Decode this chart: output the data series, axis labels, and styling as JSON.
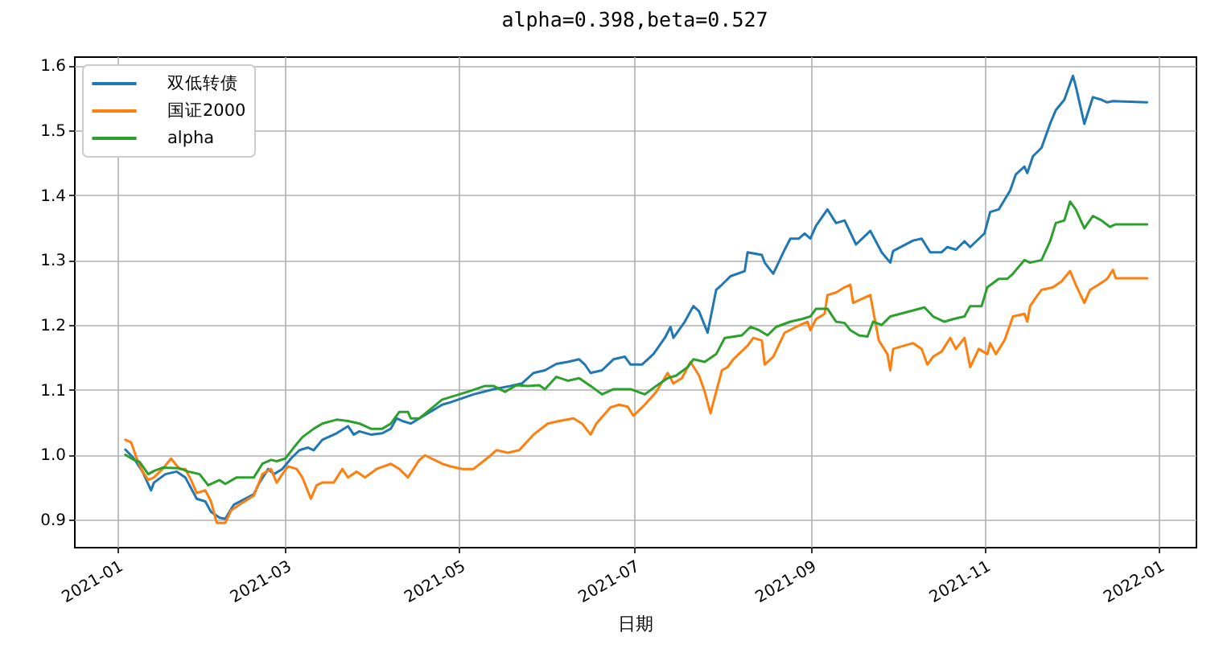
{
  "chart_data": {
    "type": "line",
    "title": "alpha=0.398,beta=0.527",
    "xlabel": "日期",
    "xlim": [
      "2020-12-17",
      "2022-01-14"
    ],
    "ylim": [
      0.858,
      1.614
    ],
    "xticks": [
      "2021-01",
      "2021-03",
      "2021-05",
      "2021-07",
      "2021-09",
      "2021-11",
      "2022-01"
    ],
    "yticks": [
      0.9,
      {
        "value": 1,
        "label": "1.0"
      },
      1.1,
      1.2,
      1.3,
      1.4,
      1.5,
      1.6
    ],
    "grid": true,
    "legend": "top left",
    "series": [
      {
        "name": "双低转债",
        "color": "#1f77b4",
        "x": [
          "2021-01-04",
          "2021-01-07",
          "2021-01-10",
          "2021-01-13",
          "2021-01-14",
          "2021-01-18",
          "2021-01-22",
          "2021-01-25",
          "2021-01-29",
          "2021-02-01",
          "2021-02-03",
          "2021-02-06",
          "2021-02-08",
          "2021-02-10",
          "2021-02-11",
          "2021-02-18",
          "2021-02-20",
          "2021-02-23",
          "2021-02-25",
          "2021-02-28",
          "2021-03-03",
          "2021-03-06",
          "2021-03-09",
          "2021-03-11",
          "2021-03-14",
          "2021-03-19",
          "2021-03-23",
          "2021-03-25",
          "2021-03-27",
          "2021-03-31",
          "2021-04-04",
          "2021-04-07",
          "2021-04-09",
          "2021-04-11",
          "2021-04-14",
          "2021-04-17",
          "2021-04-25",
          "2021-04-28",
          "2021-05-06",
          "2021-05-13",
          "2021-05-19",
          "2021-05-23",
          "2021-05-27",
          "2021-05-31",
          "2021-06-04",
          "2021-06-08",
          "2021-06-12",
          "2021-06-14",
          "2021-06-16",
          "2021-06-20",
          "2021-06-24",
          "2021-06-28",
          "2021-06-30",
          "2021-07-04",
          "2021-07-08",
          "2021-07-12",
          "2021-07-14",
          "2021-07-15",
          "2021-07-19",
          "2021-07-22",
          "2021-07-24",
          "2021-07-27",
          "2021-07-30",
          "2021-08-01",
          "2021-08-04",
          "2021-08-09",
          "2021-08-10",
          "2021-08-15",
          "2021-08-16",
          "2021-08-19",
          "2021-08-23",
          "2021-08-25",
          "2021-08-28",
          "2021-08-30",
          "2021-09-01",
          "2021-09-03",
          "2021-09-07",
          "2021-09-10",
          "2021-09-13",
          "2021-09-17",
          "2021-09-22",
          "2021-09-26",
          "2021-09-29",
          "2021-09-30",
          "2021-10-07",
          "2021-10-10",
          "2021-10-13",
          "2021-10-17",
          "2021-10-19",
          "2021-10-22",
          "2021-10-25",
          "2021-10-27",
          "2021-11-01",
          "2021-11-03",
          "2021-11-06",
          "2021-11-10",
          "2021-11-12",
          "2021-11-15",
          "2021-11-16",
          "2021-11-18",
          "2021-11-21",
          "2021-11-24",
          "2021-11-26",
          "2021-11-29",
          "2021-12-02",
          "2021-12-03",
          "2021-12-06",
          "2021-12-09",
          "2021-12-12",
          "2021-12-14",
          "2021-12-16",
          "2021-12-28"
        ],
        "values": [
          1.008,
          0.994,
          0.974,
          0.945,
          0.957,
          0.97,
          0.974,
          0.965,
          0.932,
          0.928,
          0.912,
          0.903,
          0.901,
          0.916,
          0.923,
          0.939,
          0.957,
          0.978,
          0.97,
          0.978,
          0.994,
          1.007,
          1.011,
          1.007,
          1.023,
          1.033,
          1.044,
          1.031,
          1.036,
          1.031,
          1.033,
          1.04,
          1.056,
          1.052,
          1.048,
          1.056,
          1.077,
          1.081,
          1.093,
          1.101,
          1.106,
          1.11,
          1.126,
          1.13,
          1.14,
          1.143,
          1.147,
          1.139,
          1.126,
          1.13,
          1.147,
          1.151,
          1.139,
          1.139,
          1.155,
          1.18,
          1.197,
          1.18,
          1.205,
          1.229,
          1.221,
          1.188,
          1.254,
          1.262,
          1.275,
          1.283,
          1.312,
          1.308,
          1.296,
          1.279,
          1.316,
          1.333,
          1.333,
          1.341,
          1.333,
          1.353,
          1.378,
          1.357,
          1.361,
          1.324,
          1.345,
          1.312,
          1.296,
          1.314,
          1.33,
          1.333,
          1.312,
          1.312,
          1.32,
          1.316,
          1.329,
          1.32,
          1.341,
          1.374,
          1.378,
          1.407,
          1.432,
          1.444,
          1.434,
          1.46,
          1.473,
          1.51,
          1.531,
          1.547,
          1.584,
          1.568,
          1.51,
          1.551,
          1.547,
          1.543,
          1.545,
          1.543
        ]
      },
      {
        "name": "国证2000",
        "color": "#ff7f0e",
        "x": [
          "2021-01-04",
          "2021-01-06",
          "2021-01-08",
          "2021-01-10",
          "2021-01-12",
          "2021-01-14",
          "2021-01-17",
          "2021-01-20",
          "2021-01-23",
          "2021-01-25",
          "2021-01-27",
          "2021-01-29",
          "2021-02-01",
          "2021-02-03",
          "2021-02-05",
          "2021-02-08",
          "2021-02-10",
          "2021-02-14",
          "2021-02-18",
          "2021-02-21",
          "2021-02-24",
          "2021-02-26",
          "2021-02-28",
          "2021-03-02",
          "2021-03-05",
          "2021-03-07",
          "2021-03-10",
          "2021-03-12",
          "2021-03-14",
          "2021-03-18",
          "2021-03-21",
          "2021-03-23",
          "2021-03-26",
          "2021-03-29",
          "2021-04-02",
          "2021-04-07",
          "2021-04-10",
          "2021-04-13",
          "2021-04-17",
          "2021-04-19",
          "2021-04-25",
          "2021-04-28",
          "2021-05-02",
          "2021-05-06",
          "2021-05-12",
          "2021-05-14",
          "2021-05-18",
          "2021-05-22",
          "2021-05-27",
          "2021-06-01",
          "2021-06-05",
          "2021-06-10",
          "2021-06-13",
          "2021-06-16",
          "2021-06-18",
          "2021-06-23",
          "2021-06-26",
          "2021-06-29",
          "2021-07-01",
          "2021-07-05",
          "2021-07-09",
          "2021-07-13",
          "2021-07-15",
          "2021-07-18",
          "2021-07-21",
          "2021-07-24",
          "2021-07-26",
          "2021-07-28",
          "2021-07-30",
          "2021-08-01",
          "2021-08-03",
          "2021-08-05",
          "2021-08-10",
          "2021-08-12",
          "2021-08-15",
          "2021-08-16",
          "2021-08-19",
          "2021-08-23",
          "2021-08-27",
          "2021-08-31",
          "2021-09-01",
          "2021-09-03",
          "2021-09-06",
          "2021-09-07",
          "2021-09-10",
          "2021-09-13",
          "2021-09-15",
          "2021-09-16",
          "2021-09-22",
          "2021-09-25",
          "2021-09-28",
          "2021-09-29",
          "2021-09-30",
          "2021-10-07",
          "2021-10-10",
          "2021-10-12",
          "2021-10-14",
          "2021-10-17",
          "2021-10-20",
          "2021-10-22",
          "2021-10-25",
          "2021-10-27",
          "2021-10-30",
          "2021-11-02",
          "2021-11-03",
          "2021-11-05",
          "2021-11-08",
          "2021-11-11",
          "2021-11-15",
          "2021-11-16",
          "2021-11-17",
          "2021-11-19",
          "2021-11-21",
          "2021-11-25",
          "2021-11-28",
          "2021-12-01",
          "2021-12-03",
          "2021-12-06",
          "2021-12-08",
          "2021-12-11",
          "2021-12-14",
          "2021-12-16",
          "2021-12-17",
          "2021-12-28"
        ],
        "values": [
          1.023,
          1.019,
          0.994,
          0.974,
          0.961,
          0.965,
          0.978,
          0.994,
          0.978,
          0.978,
          0.961,
          0.941,
          0.945,
          0.928,
          0.895,
          0.895,
          0.914,
          0.926,
          0.937,
          0.97,
          0.978,
          0.957,
          0.97,
          0.982,
          0.978,
          0.965,
          0.932,
          0.953,
          0.957,
          0.957,
          0.978,
          0.965,
          0.974,
          0.965,
          0.978,
          0.986,
          0.978,
          0.965,
          0.992,
          0.999,
          0.986,
          0.982,
          0.978,
          0.978,
          0.999,
          1.007,
          1.003,
          1.007,
          1.031,
          1.048,
          1.052,
          1.056,
          1.048,
          1.031,
          1.048,
          1.073,
          1.077,
          1.074,
          1.06,
          1.077,
          1.097,
          1.126,
          1.11,
          1.118,
          1.143,
          1.122,
          1.097,
          1.064,
          1.097,
          1.13,
          1.135,
          1.147,
          1.168,
          1.18,
          1.176,
          1.139,
          1.151,
          1.188,
          1.197,
          1.205,
          1.192,
          1.209,
          1.217,
          1.246,
          1.25,
          1.258,
          1.262,
          1.234,
          1.246,
          1.176,
          1.155,
          1.13,
          1.163,
          1.172,
          1.163,
          1.139,
          1.151,
          1.159,
          1.18,
          1.163,
          1.18,
          1.135,
          1.163,
          1.155,
          1.172,
          1.155,
          1.176,
          1.213,
          1.217,
          1.205,
          1.229,
          1.242,
          1.254,
          1.258,
          1.267,
          1.283,
          1.262,
          1.234,
          1.254,
          1.262,
          1.271,
          1.285,
          1.272,
          1.272
        ]
      },
      {
        "name": "alpha",
        "color": "#2ca02c",
        "x": [
          "2021-01-04",
          "2021-01-07",
          "2021-01-09",
          "2021-01-12",
          "2021-01-14",
          "2021-01-17",
          "2021-01-23",
          "2021-01-26",
          "2021-01-30",
          "2021-02-02",
          "2021-02-04",
          "2021-02-06",
          "2021-02-08",
          "2021-02-12",
          "2021-02-18",
          "2021-02-21",
          "2021-02-24",
          "2021-02-26",
          "2021-03-01",
          "2021-03-04",
          "2021-03-07",
          "2021-03-11",
          "2021-03-14",
          "2021-03-19",
          "2021-03-23",
          "2021-03-27",
          "2021-03-31",
          "2021-04-04",
          "2021-04-07",
          "2021-04-10",
          "2021-04-13",
          "2021-04-14",
          "2021-04-17",
          "2021-04-25",
          "2021-04-28",
          "2021-05-04",
          "2021-05-10",
          "2021-05-13",
          "2021-05-17",
          "2021-05-21",
          "2021-05-25",
          "2021-05-29",
          "2021-05-31",
          "2021-06-04",
          "2021-06-08",
          "2021-06-12",
          "2021-06-16",
          "2021-06-20",
          "2021-06-24",
          "2021-06-30",
          "2021-07-05",
          "2021-07-09",
          "2021-07-13",
          "2021-07-16",
          "2021-07-20",
          "2021-07-22",
          "2021-07-26",
          "2021-07-30",
          "2021-08-02",
          "2021-08-08",
          "2021-08-11",
          "2021-08-14",
          "2021-08-17",
          "2021-08-20",
          "2021-08-25",
          "2021-08-29",
          "2021-09-01",
          "2021-09-03",
          "2021-09-07",
          "2021-09-10",
          "2021-09-13",
          "2021-09-15",
          "2021-09-18",
          "2021-09-21",
          "2021-09-23",
          "2021-09-26",
          "2021-09-29",
          "2021-10-11",
          "2021-10-14",
          "2021-10-18",
          "2021-10-21",
          "2021-10-25",
          "2021-10-27",
          "2021-10-31",
          "2021-11-02",
          "2021-11-06",
          "2021-11-09",
          "2021-11-11",
          "2021-11-15",
          "2021-11-17",
          "2021-11-21",
          "2021-11-24",
          "2021-11-26",
          "2021-11-29",
          "2021-12-01",
          "2021-12-03",
          "2021-12-06",
          "2021-12-09",
          "2021-12-12",
          "2021-12-15",
          "2021-12-17",
          "2021-12-28"
        ],
        "values": [
          1.0,
          0.992,
          0.989,
          0.97,
          0.975,
          0.98,
          0.979,
          0.974,
          0.97,
          0.953,
          0.957,
          0.961,
          0.955,
          0.965,
          0.965,
          0.986,
          0.992,
          0.99,
          0.994,
          1.011,
          1.027,
          1.04,
          1.048,
          1.054,
          1.052,
          1.048,
          1.04,
          1.04,
          1.048,
          1.066,
          1.066,
          1.056,
          1.056,
          1.085,
          1.089,
          1.097,
          1.106,
          1.106,
          1.097,
          1.107,
          1.106,
          1.107,
          1.101,
          1.12,
          1.114,
          1.118,
          1.106,
          1.093,
          1.101,
          1.101,
          1.093,
          1.106,
          1.118,
          1.122,
          1.135,
          1.147,
          1.143,
          1.155,
          1.18,
          1.184,
          1.197,
          1.192,
          1.184,
          1.197,
          1.205,
          1.209,
          1.213,
          1.225,
          1.225,
          1.205,
          1.203,
          1.192,
          1.184,
          1.182,
          1.205,
          1.2,
          1.213,
          1.227,
          1.213,
          1.205,
          1.209,
          1.213,
          1.229,
          1.229,
          1.258,
          1.271,
          1.271,
          1.279,
          1.3,
          1.296,
          1.3,
          1.329,
          1.357,
          1.361,
          1.39,
          1.378,
          1.349,
          1.368,
          1.361,
          1.351,
          1.355,
          1.355
        ]
      }
    ]
  }
}
